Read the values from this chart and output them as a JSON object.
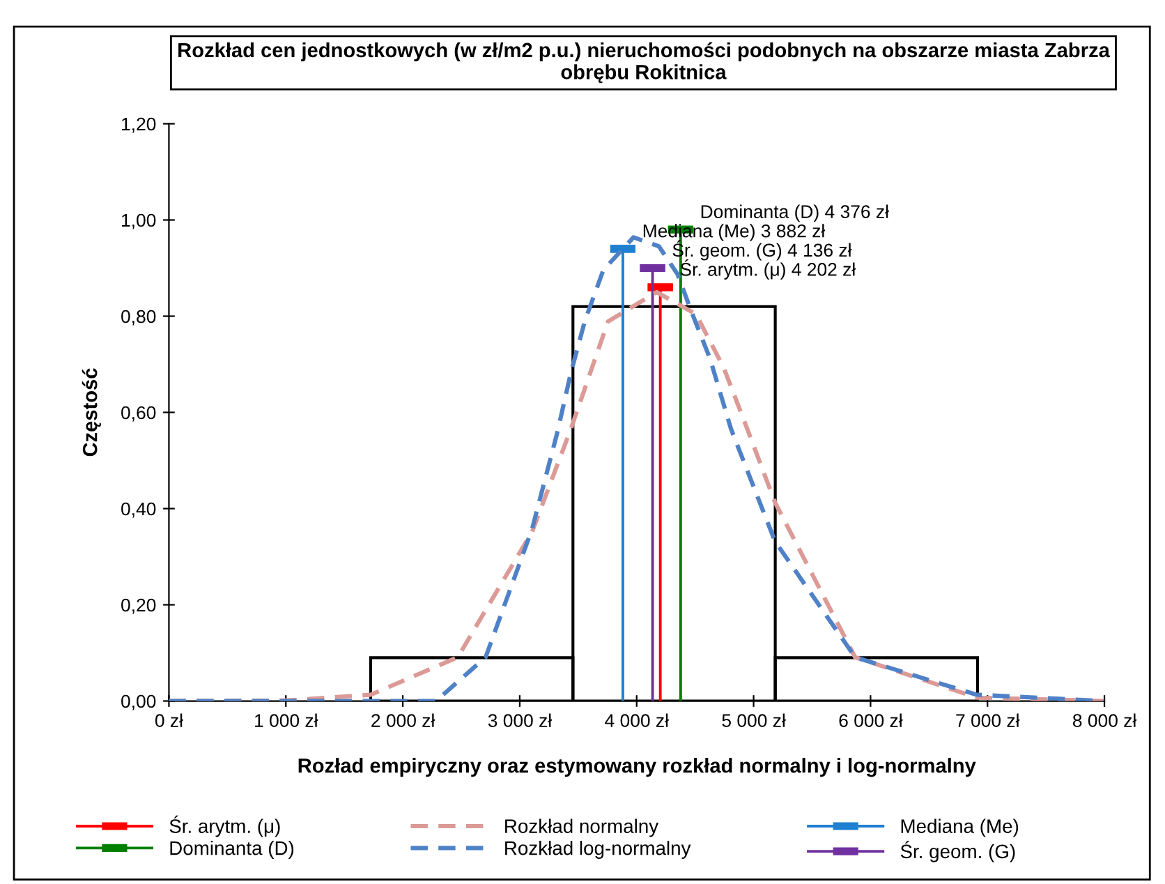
{
  "chart_data": {
    "type": "line",
    "title": "Rozkład cen jednostkowych (w zł/m2 p.u.) nieruchomości podobnych na obszarze miasta Zabrza obrębu Rokitnica",
    "xlabel": "Rozład empiryczny oraz estymowany rozkład normalny i log-normalny",
    "ylabel": "Częstość",
    "xlim": [
      0,
      8000
    ],
    "xticks": [
      {
        "value": 0,
        "label": "0 zł"
      },
      {
        "value": 1000,
        "label": "1 000 zł"
      },
      {
        "value": 2000,
        "label": "2 000 zł"
      },
      {
        "value": 3000,
        "label": "3 000 zł"
      },
      {
        "value": 4000,
        "label": "4 000 zł"
      },
      {
        "value": 5000,
        "label": "5 000 zł"
      },
      {
        "value": 6000,
        "label": "6 000 zł"
      },
      {
        "value": 7000,
        "label": "7 000 zł"
      },
      {
        "value": 8000,
        "label": "8 000 zł"
      }
    ],
    "ylim": [
      0,
      1.2
    ],
    "yticks": [
      {
        "value": 0,
        "label": "0,00"
      },
      {
        "value": 0.2,
        "label": "0,20"
      },
      {
        "value": 0.4,
        "label": "0,40"
      },
      {
        "value": 0.6,
        "label": "0,60"
      },
      {
        "value": 0.8,
        "label": "0,80"
      },
      {
        "value": 1.0,
        "label": "1,00"
      },
      {
        "value": 1.2,
        "label": "1,20"
      }
    ],
    "grid": false,
    "legend": "bottom",
    "series": [
      {
        "type": "histogram",
        "color": "#000000",
        "bins": [
          1725,
          3455,
          5185,
          6915
        ],
        "values": [
          0.09,
          0.82,
          0.09
        ]
      },
      {
        "name": "Śr. arytm. (μ)",
        "color": "#ff0000",
        "x": [
          4202,
          4202
        ],
        "values": [
          0,
          0.86
        ]
      },
      {
        "name": "Dominanta (D)",
        "color": "#008000",
        "x": [
          4376,
          4376
        ],
        "values": [
          0,
          0.98
        ]
      },
      {
        "name": "Rozkład normalny",
        "color": "#dc9a96",
        "line_style": "dashed",
        "x": [
          0,
          1000,
          1726,
          2470,
          3106,
          3438,
          3755,
          4171,
          4508,
          4746,
          4945,
          5183,
          5868,
          6909,
          8000
        ],
        "values": [
          0,
          0.001,
          0.013,
          0.091,
          0.352,
          0.566,
          0.789,
          0.85,
          0.804,
          0.692,
          0.566,
          0.413,
          0.091,
          0.007,
          0
        ]
      },
      {
        "name": "Rozkład log-normalny",
        "color": "#4f81c7",
        "line_style": "dashed",
        "x": [
          0,
          2284,
          2708,
          3106,
          3319,
          3438,
          3557,
          3715,
          3973,
          4191,
          4350,
          4469,
          4627,
          4806,
          5183,
          5868,
          6909,
          8000
        ],
        "values": [
          0,
          0,
          0.091,
          0.358,
          0.556,
          0.683,
          0.79,
          0.896,
          0.964,
          0.945,
          0.887,
          0.809,
          0.712,
          0.566,
          0.332,
          0.091,
          0.013,
          0
        ]
      },
      {
        "name": "Mediana (Me)",
        "color": "#1f7fd0",
        "x": [
          3882,
          3882
        ],
        "values": [
          0,
          0.94
        ]
      },
      {
        "name": "Śr. geom. (G)",
        "color": "#7030a0",
        "x": [
          4136,
          4136
        ],
        "values": [
          0,
          0.9
        ]
      }
    ],
    "annotations": [
      {
        "text": "Dominanta (D) 4 376 zł",
        "x": 4376,
        "y": 0.98
      },
      {
        "text": "Mediana (Me) 3 882 zł",
        "x": 3882,
        "y": 0.94
      },
      {
        "text": "Śr. geom. (G) 4 136 zł",
        "x": 4136,
        "y": 0.9
      },
      {
        "text": "Śr. arytm. (μ) 4 202 zł",
        "x": 4202,
        "y": 0.86
      }
    ]
  }
}
